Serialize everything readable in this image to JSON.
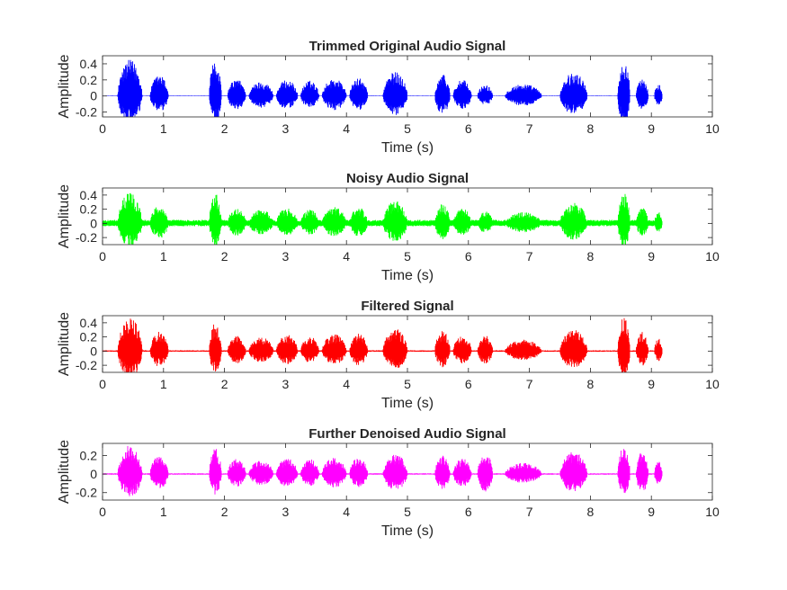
{
  "chart_data": [
    {
      "type": "line",
      "title": "Trimmed Original Audio Signal",
      "xlabel": "Time (s)",
      "ylabel": "Amplitude",
      "xlim": [
        0,
        10
      ],
      "ylim": [
        -0.26,
        0.5
      ],
      "xticks": [
        0,
        1,
        2,
        3,
        4,
        5,
        6,
        7,
        8,
        9,
        10
      ],
      "yticks": [
        -0.2,
        0,
        0.2,
        0.4
      ],
      "ytick_labels": [
        "-0.2",
        "0",
        "0.2",
        "0.4"
      ],
      "color": "#0000ff",
      "noise_floor": 0.004,
      "signal_end": 9.18,
      "bursts": [
        {
          "s": 0.25,
          "e": 0.65,
          "a": 0.45
        },
        {
          "s": 0.78,
          "e": 1.08,
          "a": 0.26
        },
        {
          "s": 1.75,
          "e": 1.95,
          "a": 0.44
        },
        {
          "s": 2.05,
          "e": 2.35,
          "a": 0.21
        },
        {
          "s": 2.4,
          "e": 2.8,
          "a": 0.18
        },
        {
          "s": 2.85,
          "e": 3.2,
          "a": 0.2
        },
        {
          "s": 3.25,
          "e": 3.55,
          "a": 0.19
        },
        {
          "s": 3.6,
          "e": 4.0,
          "a": 0.22
        },
        {
          "s": 4.05,
          "e": 4.35,
          "a": 0.22
        },
        {
          "s": 4.6,
          "e": 5.0,
          "a": 0.3
        },
        {
          "s": 5.45,
          "e": 5.7,
          "a": 0.27
        },
        {
          "s": 5.75,
          "e": 6.05,
          "a": 0.2
        },
        {
          "s": 6.15,
          "e": 6.4,
          "a": 0.14
        },
        {
          "s": 6.6,
          "e": 7.2,
          "a": 0.15
        },
        {
          "s": 7.5,
          "e": 7.95,
          "a": 0.29
        },
        {
          "s": 8.45,
          "e": 8.65,
          "a": 0.46
        },
        {
          "s": 8.75,
          "e": 8.95,
          "a": 0.21
        },
        {
          "s": 9.05,
          "e": 9.18,
          "a": 0.15
        }
      ]
    },
    {
      "type": "line",
      "title": "Noisy Audio Signal",
      "xlabel": "Time (s)",
      "ylabel": "Amplitude",
      "xlim": [
        0,
        10
      ],
      "ylim": [
        -0.3,
        0.5
      ],
      "xticks": [
        0,
        1,
        2,
        3,
        4,
        5,
        6,
        7,
        8,
        9,
        10
      ],
      "yticks": [
        -0.2,
        0,
        0.2,
        0.4
      ],
      "ytick_labels": [
        "-0.2",
        "0",
        "0.2",
        "0.4"
      ],
      "color": "#00ff00",
      "noise_floor": 0.05,
      "signal_end": 9.18,
      "bursts": [
        {
          "s": 0.25,
          "e": 0.65,
          "a": 0.44
        },
        {
          "s": 0.78,
          "e": 1.08,
          "a": 0.27
        },
        {
          "s": 1.75,
          "e": 1.95,
          "a": 0.42
        },
        {
          "s": 2.05,
          "e": 2.35,
          "a": 0.22
        },
        {
          "s": 2.4,
          "e": 2.8,
          "a": 0.2
        },
        {
          "s": 2.85,
          "e": 3.2,
          "a": 0.22
        },
        {
          "s": 3.25,
          "e": 3.55,
          "a": 0.2
        },
        {
          "s": 3.6,
          "e": 4.0,
          "a": 0.23
        },
        {
          "s": 4.05,
          "e": 4.35,
          "a": 0.23
        },
        {
          "s": 4.6,
          "e": 5.0,
          "a": 0.32
        },
        {
          "s": 5.45,
          "e": 5.7,
          "a": 0.28
        },
        {
          "s": 5.75,
          "e": 6.05,
          "a": 0.21
        },
        {
          "s": 6.15,
          "e": 6.4,
          "a": 0.17
        },
        {
          "s": 6.6,
          "e": 7.2,
          "a": 0.16
        },
        {
          "s": 7.5,
          "e": 7.95,
          "a": 0.29
        },
        {
          "s": 8.45,
          "e": 8.65,
          "a": 0.44
        },
        {
          "s": 8.75,
          "e": 8.95,
          "a": 0.22
        },
        {
          "s": 9.05,
          "e": 9.18,
          "a": 0.16
        }
      ]
    },
    {
      "type": "line",
      "title": "Filtered Signal",
      "xlabel": "Time (s)",
      "ylabel": "Amplitude",
      "xlim": [
        0,
        10
      ],
      "ylim": [
        -0.3,
        0.5
      ],
      "xticks": [
        0,
        1,
        2,
        3,
        4,
        5,
        6,
        7,
        8,
        9,
        10
      ],
      "yticks": [
        -0.2,
        0,
        0.2,
        0.4
      ],
      "ytick_labels": [
        "-0.2",
        "0",
        "0.2",
        "0.4"
      ],
      "color": "#ff0000",
      "noise_floor": 0.012,
      "signal_end": 9.18,
      "bursts": [
        {
          "s": 0.25,
          "e": 0.65,
          "a": 0.48
        },
        {
          "s": 0.78,
          "e": 1.08,
          "a": 0.28
        },
        {
          "s": 1.75,
          "e": 1.95,
          "a": 0.4
        },
        {
          "s": 2.05,
          "e": 2.35,
          "a": 0.22
        },
        {
          "s": 2.4,
          "e": 2.8,
          "a": 0.2
        },
        {
          "s": 2.85,
          "e": 3.2,
          "a": 0.23
        },
        {
          "s": 3.25,
          "e": 3.55,
          "a": 0.21
        },
        {
          "s": 3.6,
          "e": 4.0,
          "a": 0.24
        },
        {
          "s": 4.05,
          "e": 4.35,
          "a": 0.25
        },
        {
          "s": 4.6,
          "e": 5.0,
          "a": 0.32
        },
        {
          "s": 5.45,
          "e": 5.7,
          "a": 0.29
        },
        {
          "s": 5.75,
          "e": 6.05,
          "a": 0.22
        },
        {
          "s": 6.15,
          "e": 6.4,
          "a": 0.22
        },
        {
          "s": 6.6,
          "e": 7.2,
          "a": 0.16
        },
        {
          "s": 7.5,
          "e": 7.95,
          "a": 0.3
        },
        {
          "s": 8.45,
          "e": 8.65,
          "a": 0.48
        },
        {
          "s": 8.75,
          "e": 8.95,
          "a": 0.27
        },
        {
          "s": 9.05,
          "e": 9.18,
          "a": 0.18
        }
      ]
    },
    {
      "type": "line",
      "title": "Further Denoised Audio Signal",
      "xlabel": "Time (s)",
      "ylabel": "Amplitude",
      "xlim": [
        0,
        10
      ],
      "ylim": [
        -0.28,
        0.33
      ],
      "xticks": [
        0,
        1,
        2,
        3,
        4,
        5,
        6,
        7,
        8,
        9,
        10
      ],
      "yticks": [
        -0.2,
        0,
        0.2
      ],
      "ytick_labels": [
        "-0.2",
        "0",
        "0.2"
      ],
      "color": "#ff00ff",
      "noise_floor": 0.008,
      "signal_end": 9.18,
      "bursts": [
        {
          "s": 0.25,
          "e": 0.65,
          "a": 0.31
        },
        {
          "s": 0.78,
          "e": 1.08,
          "a": 0.2
        },
        {
          "s": 1.75,
          "e": 1.95,
          "a": 0.28
        },
        {
          "s": 2.05,
          "e": 2.35,
          "a": 0.17
        },
        {
          "s": 2.4,
          "e": 2.8,
          "a": 0.15
        },
        {
          "s": 2.85,
          "e": 3.2,
          "a": 0.17
        },
        {
          "s": 3.25,
          "e": 3.55,
          "a": 0.16
        },
        {
          "s": 3.6,
          "e": 4.0,
          "a": 0.18
        },
        {
          "s": 4.05,
          "e": 4.35,
          "a": 0.18
        },
        {
          "s": 4.6,
          "e": 5.0,
          "a": 0.22
        },
        {
          "s": 5.45,
          "e": 5.7,
          "a": 0.2
        },
        {
          "s": 5.75,
          "e": 6.05,
          "a": 0.17
        },
        {
          "s": 6.15,
          "e": 6.4,
          "a": 0.24
        },
        {
          "s": 6.6,
          "e": 7.2,
          "a": 0.12
        },
        {
          "s": 7.5,
          "e": 7.95,
          "a": 0.24
        },
        {
          "s": 8.45,
          "e": 8.65,
          "a": 0.3
        },
        {
          "s": 8.75,
          "e": 8.95,
          "a": 0.25
        },
        {
          "s": 9.05,
          "e": 9.18,
          "a": 0.14
        }
      ]
    }
  ]
}
